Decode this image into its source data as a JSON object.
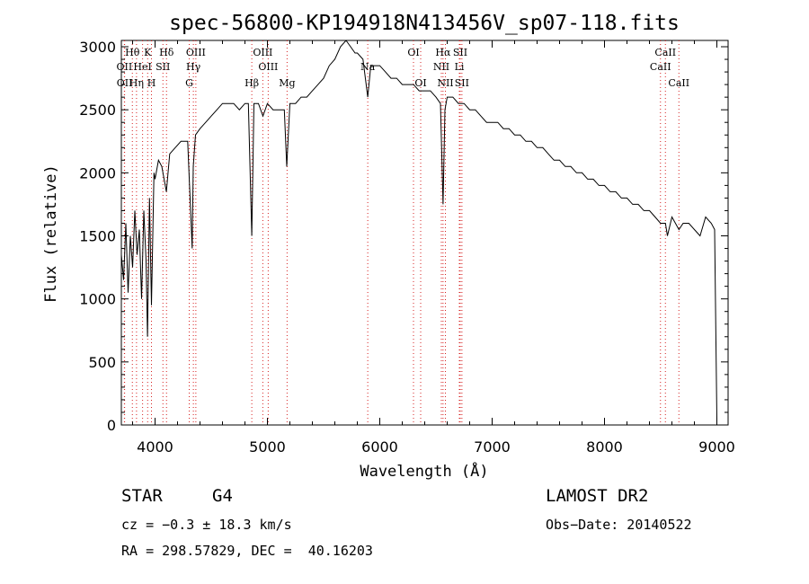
{
  "chart_data": {
    "type": "line",
    "title": "spec-56800-KP194918N413456V_sp07-118.fits",
    "xlabel": "Wavelength (Å)",
    "ylabel": "Flux (relative)",
    "xlim": [
      3700,
      9100
    ],
    "ylim": [
      0,
      3050
    ],
    "xticks": [
      4000,
      5000,
      6000,
      7000,
      8000,
      9000
    ],
    "yticks": [
      0,
      500,
      1000,
      1500,
      2000,
      2500,
      3000
    ],
    "grid": false,
    "spectrum": {
      "x": [
        3700,
        3720,
        3740,
        3760,
        3780,
        3800,
        3820,
        3840,
        3860,
        3880,
        3900,
        3920,
        3933,
        3950,
        3968,
        3990,
        4000,
        4030,
        4060,
        4101,
        4130,
        4180,
        4230,
        4290,
        4330,
        4340,
        4360,
        4400,
        4450,
        4500,
        4550,
        4600,
        4650,
        4700,
        4750,
        4800,
        4830,
        4861,
        4880,
        4920,
        4960,
        5000,
        5050,
        5100,
        5150,
        5172,
        5200,
        5250,
        5300,
        5350,
        5400,
        5450,
        5500,
        5550,
        5600,
        5650,
        5700,
        5740,
        5780,
        5800,
        5850,
        5893,
        5920,
        5960,
        6000,
        6050,
        6100,
        6150,
        6200,
        6250,
        6300,
        6350,
        6400,
        6450,
        6500,
        6540,
        6563,
        6580,
        6600,
        6650,
        6700,
        6750,
        6800,
        6850,
        6900,
        6950,
        7000,
        7050,
        7100,
        7150,
        7200,
        7250,
        7300,
        7350,
        7400,
        7450,
        7500,
        7550,
        7600,
        7650,
        7700,
        7750,
        7800,
        7850,
        7900,
        7950,
        8000,
        8050,
        8100,
        8150,
        8200,
        8250,
        8300,
        8350,
        8400,
        8450,
        8498,
        8542,
        8560,
        8600,
        8662,
        8700,
        8750,
        8800,
        8850,
        8900,
        8950,
        8980,
        9000
      ],
      "y": [
        1350,
        1150,
        1600,
        1050,
        1500,
        1250,
        1700,
        1350,
        1550,
        1000,
        1700,
        1300,
        700,
        1800,
        950,
        2000,
        1950,
        2100,
        2050,
        1850,
        2150,
        2200,
        2250,
        2250,
        1400,
        2050,
        2300,
        2350,
        2400,
        2450,
        2500,
        2550,
        2550,
        2550,
        2500,
        2550,
        2550,
        1500,
        2550,
        2550,
        2450,
        2550,
        2500,
        2500,
        2500,
        2050,
        2550,
        2550,
        2600,
        2600,
        2650,
        2700,
        2750,
        2850,
        2900,
        3000,
        3050,
        3000,
        2950,
        2950,
        2900,
        2600,
        2850,
        2850,
        2850,
        2800,
        2750,
        2750,
        2700,
        2700,
        2700,
        2650,
        2650,
        2650,
        2600,
        2550,
        1750,
        2500,
        2600,
        2600,
        2550,
        2550,
        2500,
        2500,
        2450,
        2400,
        2400,
        2400,
        2350,
        2350,
        2300,
        2300,
        2250,
        2250,
        2200,
        2200,
        2150,
        2100,
        2100,
        2050,
        2050,
        2000,
        2000,
        1950,
        1950,
        1900,
        1900,
        1850,
        1850,
        1800,
        1800,
        1750,
        1750,
        1700,
        1700,
        1650,
        1600,
        1600,
        1500,
        1650,
        1550,
        1600,
        1600,
        1550,
        1500,
        1650,
        1600,
        1550,
        50
      ]
    },
    "lines": [
      {
        "label": "Hθ",
        "x": 3798,
        "row": 0
      },
      {
        "label": "OII",
        "x": 3727,
        "row": 1
      },
      {
        "label": "OII",
        "x": 3729,
        "row": 2
      },
      {
        "label": "K",
        "x": 3934,
        "row": 0
      },
      {
        "label": "HeI",
        "x": 3889,
        "row": 1
      },
      {
        "label": "Hη",
        "x": 3835,
        "row": 2
      },
      {
        "label": "Hδ",
        "x": 4102,
        "row": 0
      },
      {
        "label": "SII",
        "x": 4070,
        "row": 1
      },
      {
        "label": "H",
        "x": 3968,
        "row": 2
      },
      {
        "label": "OIII",
        "x": 4363,
        "row": 0
      },
      {
        "label": "Hγ",
        "x": 4341,
        "row": 1
      },
      {
        "label": "G",
        "x": 4304,
        "row": 2
      },
      {
        "label": "Hβ",
        "x": 4861,
        "row": 2
      },
      {
        "label": "OIII",
        "x": 4959,
        "row": 0
      },
      {
        "label": "OIII",
        "x": 5007,
        "row": 1
      },
      {
        "label": "Mg",
        "x": 5175,
        "row": 2
      },
      {
        "label": "Na",
        "x": 5893,
        "row": 1
      },
      {
        "label": "OI",
        "x": 6300,
        "row": 0
      },
      {
        "label": "OI",
        "x": 6364,
        "row": 2
      },
      {
        "label": "Hα",
        "x": 6563,
        "row": 0
      },
      {
        "label": "NII",
        "x": 6548,
        "row": 1
      },
      {
        "label": "NII",
        "x": 6584,
        "row": 2
      },
      {
        "label": "SII",
        "x": 6716,
        "row": 0
      },
      {
        "label": "Li",
        "x": 6708,
        "row": 1
      },
      {
        "label": "SII",
        "x": 6731,
        "row": 2
      },
      {
        "label": "CaII",
        "x": 8542,
        "row": 0
      },
      {
        "label": "CaII",
        "x": 8498,
        "row": 1
      },
      {
        "label": "CaII",
        "x": 8662,
        "row": 2
      }
    ]
  },
  "info": {
    "class_label": "STAR",
    "subclass": "G4",
    "survey": "LAMOST DR2",
    "cz": "cz = −0.3 ± 18.3 km/s",
    "obs_date": "Obs−Date: 20140522",
    "coords": "RA = 298.57829, DEC =  40.16203"
  }
}
